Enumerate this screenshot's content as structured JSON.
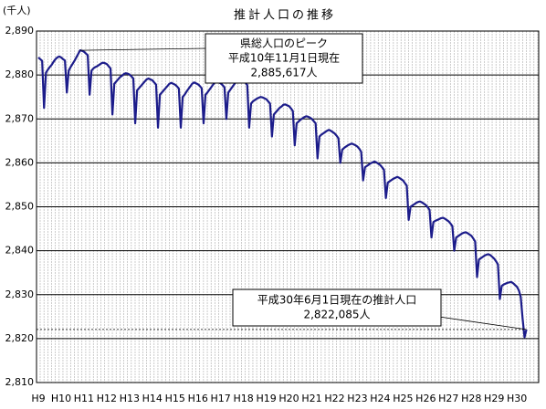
{
  "chart_data": {
    "type": "line",
    "title": "推計人口の推移",
    "y_unit": "(千人)",
    "color": "#1c1c8a",
    "grid": true,
    "categories": [
      "H9",
      null,
      null,
      null,
      null,
      null,
      null,
      null,
      null,
      null,
      null,
      null,
      "H10",
      null,
      null,
      null,
      null,
      null,
      null,
      null,
      null,
      null,
      null,
      null,
      "H11",
      null,
      null,
      null,
      null,
      null,
      null,
      null,
      null,
      null,
      null,
      null,
      "H12",
      null,
      null,
      null,
      null,
      null,
      null,
      null,
      null,
      null,
      null,
      null,
      "H13",
      null,
      null,
      null,
      null,
      null,
      null,
      null,
      null,
      null,
      null,
      null,
      "H14",
      null,
      null,
      null,
      null,
      null,
      null,
      null,
      null,
      null,
      null,
      null,
      "H15",
      null,
      null,
      null,
      null,
      null,
      null,
      null,
      null,
      null,
      null,
      null,
      "H16",
      null,
      null,
      null,
      null,
      null,
      null,
      null,
      null,
      null,
      null,
      null,
      "H17",
      null,
      null,
      null,
      null,
      null,
      null,
      null,
      null,
      null,
      null,
      null,
      "H18",
      null,
      null,
      null,
      null,
      null,
      null,
      null,
      null,
      null,
      null,
      null,
      "H19",
      null,
      null,
      null,
      null,
      null,
      null,
      null,
      null,
      null,
      null,
      null,
      "H20",
      null,
      null,
      null,
      null,
      null,
      null,
      null,
      null,
      null,
      null,
      null,
      "H21",
      null,
      null,
      null,
      null,
      null,
      null,
      null,
      null,
      null,
      null,
      null,
      "H22",
      null,
      null,
      null,
      null,
      null,
      null,
      null,
      null,
      null,
      null,
      null,
      "H23",
      null,
      null,
      null,
      null,
      null,
      null,
      null,
      null,
      null,
      null,
      null,
      "H24",
      null,
      null,
      null,
      null,
      null,
      null,
      null,
      null,
      null,
      null,
      null,
      "H25",
      null,
      null,
      null,
      null,
      null,
      null,
      null,
      null,
      null,
      null,
      null,
      "H26",
      null,
      null,
      null,
      null,
      null,
      null,
      null,
      null,
      null,
      null,
      null,
      "H27",
      null,
      null,
      null,
      null,
      null,
      null,
      null,
      null,
      null,
      null,
      null,
      "H28",
      null,
      null,
      null,
      null,
      null,
      null,
      null,
      null,
      null,
      null,
      null,
      "H29",
      null,
      null,
      null,
      null,
      null,
      null,
      null,
      null,
      null,
      null,
      null,
      "H30",
      null,
      null,
      null,
      null,
      null
    ],
    "values": [
      2884.0,
      2883.6,
      2883.2,
      2872.5,
      2880.5,
      2881.2,
      2881.8,
      2882.3,
      2883.0,
      2883.6,
      2884.0,
      2884.2,
      2884.0,
      2883.6,
      2883.3,
      2876.0,
      2881.0,
      2881.8,
      2882.5,
      2883.2,
      2884.0,
      2884.8,
      2885.617,
      2885.5,
      2885.3,
      2884.9,
      2884.5,
      2875.5,
      2881.0,
      2881.5,
      2881.8,
      2882.0,
      2882.3,
      2882.6,
      2882.8,
      2882.7,
      2882.5,
      2882.0,
      2881.5,
      2871.0,
      2878.0,
      2878.5,
      2879.0,
      2879.5,
      2879.8,
      2880.2,
      2880.4,
      2880.3,
      2880.1,
      2879.7,
      2879.2,
      2869.0,
      2876.5,
      2877.0,
      2877.5,
      2878.0,
      2878.5,
      2879.0,
      2879.2,
      2879.0,
      2878.8,
      2878.3,
      2877.8,
      2868.0,
      2875.5,
      2876.0,
      2876.5,
      2877.0,
      2877.5,
      2878.0,
      2878.2,
      2878.0,
      2877.8,
      2877.4,
      2876.9,
      2868.0,
      2875.0,
      2875.5,
      2876.2,
      2876.8,
      2877.4,
      2878.0,
      2878.3,
      2878.1,
      2877.9,
      2877.5,
      2877.0,
      2869.0,
      2875.5,
      2876.0,
      2876.6,
      2877.2,
      2877.8,
      2878.3,
      2878.5,
      2878.3,
      2878.1,
      2877.7,
      2877.2,
      2870.0,
      2876.0,
      2876.6,
      2877.2,
      2877.8,
      2878.4,
      2879.0,
      2879.2,
      2879.0,
      2878.8,
      2878.3,
      2877.7,
      2868.0,
      2873.5,
      2874.0,
      2874.3,
      2874.6,
      2874.8,
      2875.0,
      2874.9,
      2874.7,
      2874.5,
      2874.0,
      2873.5,
      2866.0,
      2871.0,
      2871.5,
      2872.0,
      2872.5,
      2872.8,
      2873.2,
      2873.3,
      2873.1,
      2872.9,
      2872.4,
      2871.8,
      2864.0,
      2869.0,
      2869.4,
      2869.8,
      2870.1,
      2870.4,
      2870.6,
      2870.5,
      2870.3,
      2870.0,
      2869.5,
      2869.0,
      2861.0,
      2866.0,
      2866.4,
      2866.7,
      2867.0,
      2867.3,
      2867.5,
      2867.3,
      2867.0,
      2866.7,
      2866.2,
      2865.6,
      2860.0,
      2863.0,
      2863.4,
      2863.7,
      2864.0,
      2864.2,
      2864.4,
      2864.2,
      2864.0,
      2863.7,
      2863.2,
      2862.5,
      2856.0,
      2859.0,
      2859.3,
      2859.6,
      2859.9,
      2860.1,
      2860.3,
      2860.1,
      2859.8,
      2859.5,
      2859.0,
      2858.4,
      2852.0,
      2855.5,
      2855.8,
      2856.1,
      2856.4,
      2856.6,
      2856.8,
      2856.6,
      2856.3,
      2856.0,
      2855.4,
      2854.8,
      2847.0,
      2850.0,
      2850.3,
      2850.6,
      2850.9,
      2851.1,
      2851.2,
      2851.0,
      2850.7,
      2850.4,
      2849.9,
      2849.3,
      2843.0,
      2846.5,
      2846.8,
      2847.0,
      2847.2,
      2847.4,
      2847.5,
      2847.3,
      2847.0,
      2846.7,
      2846.2,
      2845.6,
      2840.0,
      2843.0,
      2843.3,
      2843.6,
      2843.9,
      2844.1,
      2844.2,
      2844.0,
      2843.7,
      2843.4,
      2842.8,
      2842.1,
      2834.0,
      2838.0,
      2838.3,
      2838.6,
      2838.9,
      2839.1,
      2839.2,
      2839.0,
      2838.6,
      2838.2,
      2837.6,
      2836.9,
      2829.0,
      2832.0,
      2832.3,
      2832.5,
      2832.7,
      2832.8,
      2832.9,
      2832.6,
      2832.2,
      2831.8,
      2831.0,
      2829.5,
      2824.5,
      2820.3,
      2822.085
    ],
    "ylim": [
      2810,
      2890
    ],
    "yticks": [
      {
        "value": 2810,
        "label": "2,810"
      },
      {
        "value": 2820,
        "label": "2,820"
      },
      {
        "value": 2830,
        "label": "2,830"
      },
      {
        "value": 2840,
        "label": "2,840"
      },
      {
        "value": 2850,
        "label": "2,850"
      },
      {
        "value": 2860,
        "label": "2,860"
      },
      {
        "value": 2870,
        "label": "2,870"
      },
      {
        "value": 2880,
        "label": "2,880"
      },
      {
        "value": 2890,
        "label": "2,890"
      }
    ],
    "annotations": [
      {
        "lines": [
          "県総人口のピーク",
          "平成10年11月1日現在",
          "2,885,617人"
        ]
      },
      {
        "lines": [
          "平成30年6月1日現在の推計人口",
          "2,822,085人"
        ]
      }
    ]
  }
}
